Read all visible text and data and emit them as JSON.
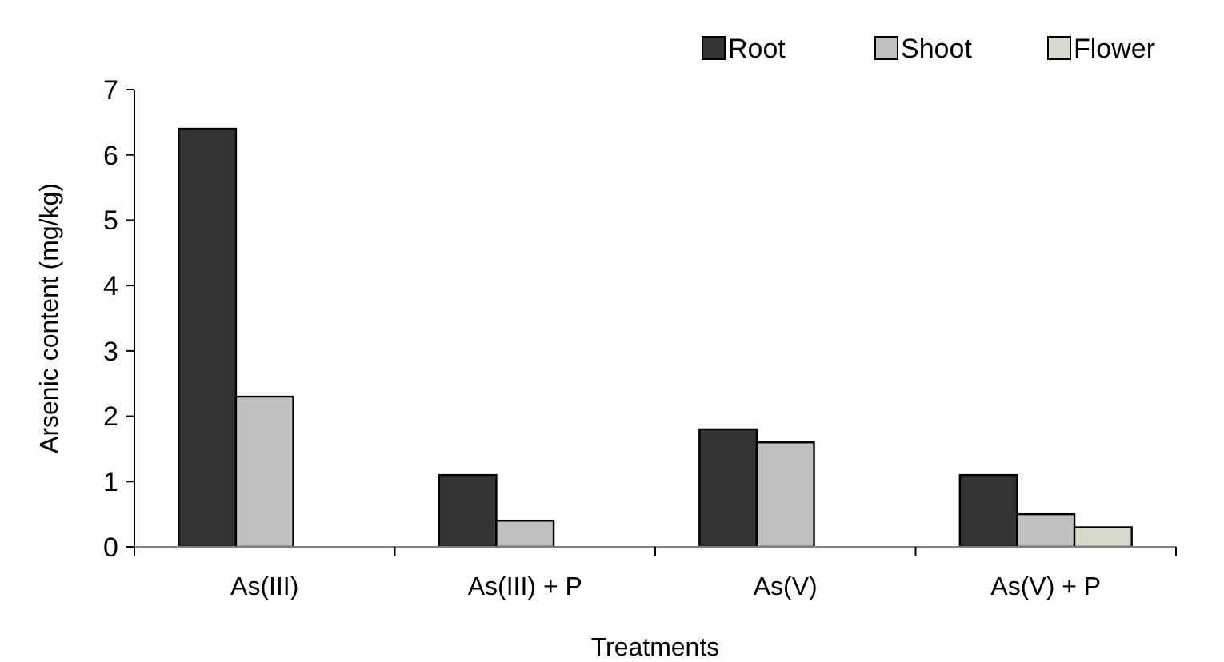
{
  "chart_data": {
    "type": "bar",
    "xlabel": "Treatments",
    "ylabel": "Arsenic content (mg/kg)",
    "categories": [
      "As(III)",
      "As(III) + P",
      "As(V)",
      "As(V) + P"
    ],
    "series": [
      {
        "name": "Root",
        "color": "#333333",
        "values": [
          6.4,
          1.1,
          1.8,
          1.1
        ]
      },
      {
        "name": "Shoot",
        "color": "#c0c0c0",
        "values": [
          2.3,
          0.4,
          1.6,
          0.5
        ]
      },
      {
        "name": "Flower",
        "color": "#d8d8cc",
        "values": [
          null,
          null,
          null,
          0.3
        ]
      }
    ],
    "ylim": [
      0,
      7
    ],
    "yticks": [
      0,
      1,
      2,
      3,
      4,
      5,
      6,
      7
    ],
    "grid": false,
    "legend": "top right"
  }
}
